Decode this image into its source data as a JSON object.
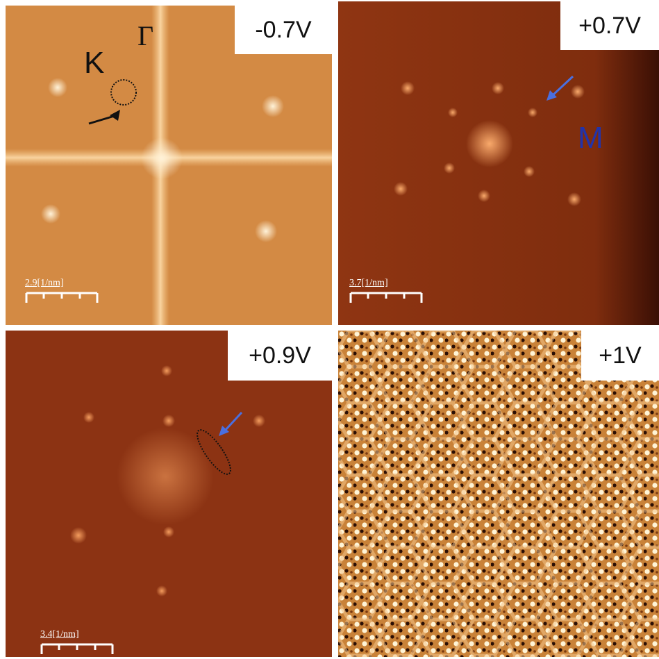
{
  "panels": [
    {
      "voltage": "-0.7V",
      "scale_label": "2.9[1/nm]"
    },
    {
      "voltage": "+0.7V",
      "scale_label": "3.7[1/nm]"
    },
    {
      "voltage": "+0.9V",
      "scale_label": "3.4[1/nm]"
    },
    {
      "voltage": "+1V"
    }
  ],
  "labels": {
    "K": "K",
    "Gamma": "Γ",
    "M": "M"
  },
  "colors": {
    "arrow_blue": "#4a6fe0",
    "label_M": "#2233aa",
    "fft_light": "#d98a3a",
    "fft_dark": "#7a2a0a"
  }
}
